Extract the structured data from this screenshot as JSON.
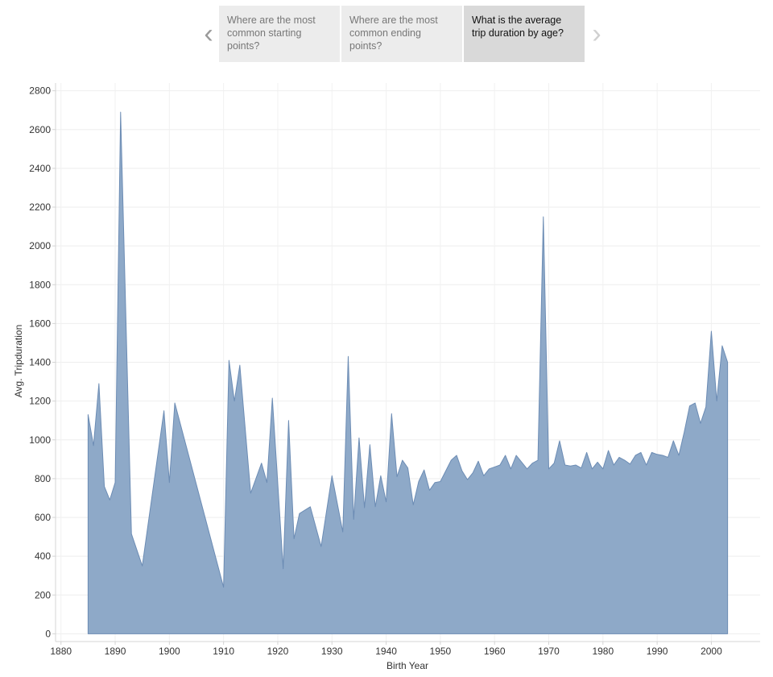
{
  "storypoints": {
    "prev_icon": "chevron-left-icon",
    "next_icon": "chevron-right-icon",
    "items": [
      {
        "label": "Where are the most common starting points?",
        "active": false
      },
      {
        "label": "Where are the most common ending points?",
        "active": false
      },
      {
        "label": "What is the average trip duration by age?",
        "active": true
      }
    ]
  },
  "chart_data": {
    "type": "area",
    "title": "",
    "xlabel": "Birth Year",
    "ylabel": "Avg. Tripduration",
    "xlim": [
      1879,
      2009
    ],
    "ylim": [
      -40,
      2840
    ],
    "x_ticks": [
      1880,
      1890,
      1900,
      1910,
      1920,
      1930,
      1940,
      1950,
      1960,
      1970,
      1980,
      1990,
      2000
    ],
    "y_ticks": [
      0,
      200,
      400,
      600,
      800,
      1000,
      1200,
      1400,
      1600,
      1800,
      2000,
      2200,
      2400,
      2600,
      2800
    ],
    "fill_color": "#8ea9c8",
    "stroke_color": "#6c8cb4",
    "grid": true,
    "series": [
      {
        "name": "Avg. Tripduration",
        "x": [
          1885,
          1886,
          1887,
          1888,
          1889,
          1890,
          1891,
          1893,
          1895,
          1899,
          1900,
          1901,
          1910,
          1911,
          1912,
          1913,
          1915,
          1917,
          1918,
          1919,
          1921,
          1922,
          1923,
          1924,
          1926,
          1928,
          1930,
          1932,
          1933,
          1934,
          1935,
          1936,
          1937,
          1938,
          1939,
          1940,
          1941,
          1942,
          1943,
          1944,
          1945,
          1946,
          1947,
          1948,
          1949,
          1950,
          1951,
          1952,
          1953,
          1954,
          1955,
          1956,
          1957,
          1958,
          1959,
          1960,
          1961,
          1962,
          1963,
          1964,
          1965,
          1966,
          1967,
          1968,
          1969,
          1970,
          1971,
          1972,
          1973,
          1974,
          1975,
          1976,
          1977,
          1978,
          1979,
          1980,
          1981,
          1982,
          1983,
          1984,
          1985,
          1986,
          1987,
          1988,
          1989,
          1990,
          1991,
          1992,
          1993,
          1994,
          1995,
          1996,
          1997,
          1998,
          1999,
          2000,
          2001,
          2002,
          2003
        ],
        "y": [
          1130,
          970,
          1290,
          760,
          690,
          780,
          2690,
          515,
          350,
          1150,
          780,
          1190,
          240,
          1410,
          1200,
          1385,
          725,
          880,
          780,
          1215,
          335,
          1100,
          490,
          620,
          655,
          450,
          815,
          525,
          1430,
          590,
          1010,
          650,
          975,
          655,
          815,
          680,
          1135,
          810,
          895,
          855,
          665,
          785,
          845,
          740,
          780,
          785,
          840,
          895,
          920,
          840,
          795,
          830,
          890,
          815,
          850,
          860,
          870,
          920,
          850,
          920,
          885,
          850,
          880,
          895,
          2150,
          850,
          880,
          995,
          870,
          865,
          870,
          855,
          935,
          850,
          885,
          850,
          945,
          870,
          910,
          895,
          875,
          920,
          935,
          870,
          935,
          925,
          920,
          910,
          995,
          920,
          1040,
          1175,
          1190,
          1085,
          1170,
          1560,
          1200,
          1485,
          1400
        ]
      }
    ]
  }
}
